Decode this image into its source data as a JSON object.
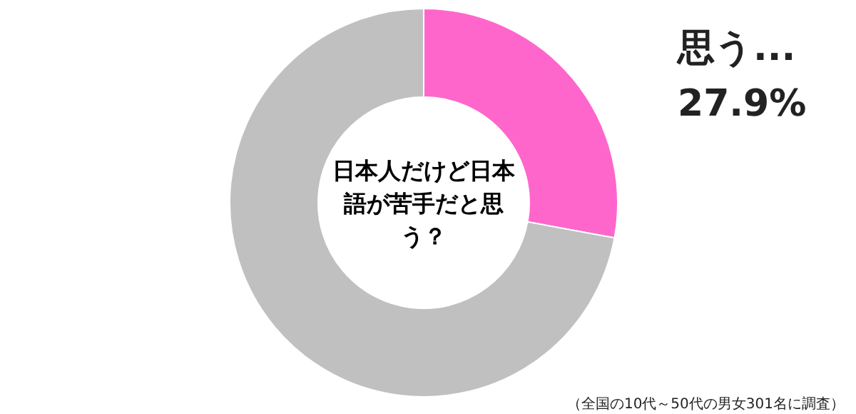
{
  "chart_data": {
    "type": "donut",
    "title": "日本人だけど日本語が苦手だと思う？",
    "categories": [
      "思う...",
      null
    ],
    "values": [
      27.9,
      72.1
    ],
    "colors": [
      "#ff66cc",
      "#c0c0c0"
    ],
    "value_labels": [
      "27.9%",
      null
    ],
    "annotations": [
      "（全国の10代～50代の男女301名に調査）"
    ]
  }
}
